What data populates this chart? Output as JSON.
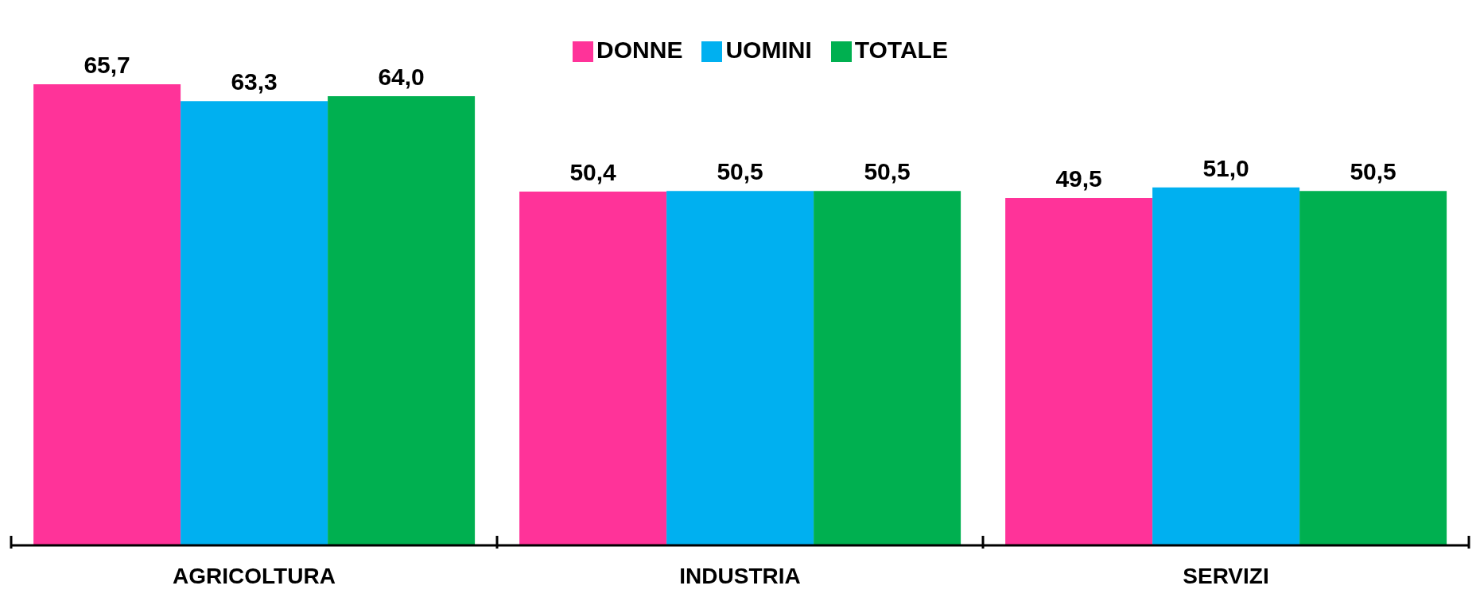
{
  "chart_data": {
    "type": "bar",
    "categories": [
      "AGRICOLTURA",
      "INDUSTRIA",
      "SERVIZI"
    ],
    "series": [
      {
        "name": "DONNE",
        "color": "#ff3399",
        "values": [
          65.7,
          50.4,
          49.5
        ],
        "value_labels": [
          "65,7",
          "50,4",
          "49,5"
        ]
      },
      {
        "name": "UOMINI",
        "color": "#00b0f0",
        "values": [
          63.3,
          50.5,
          51.0
        ],
        "value_labels": [
          "63,3",
          "50,5",
          "51,0"
        ]
      },
      {
        "name": "TOTALE",
        "color": "#00b050",
        "values": [
          64.0,
          50.5,
          50.5
        ],
        "value_labels": [
          "64,0",
          "50,5",
          "50,5"
        ]
      }
    ],
    "legend": "top",
    "grid": false
  }
}
